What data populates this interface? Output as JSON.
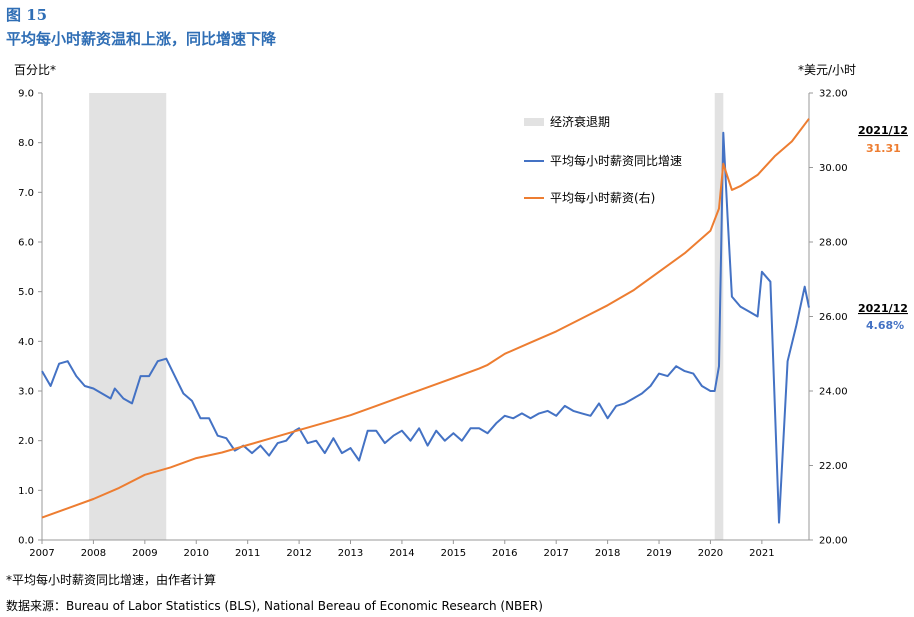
{
  "header": {
    "figure_number": "图 15",
    "title": "平均每小时薪资温和上涨，同比增速下降"
  },
  "axes": {
    "left_unit": "百分比*",
    "right_unit": "*美元/小时"
  },
  "footer": {
    "note": "*平均每小时薪资同比增速，由作者计算",
    "source": "数据来源：Bureau of Labor Statistics (BLS), National Bereau of Economic Research (NBER)"
  },
  "annotations": {
    "wage_date": "2021/12",
    "wage_value": "31.31",
    "growth_date": "2021/12",
    "growth_value": "4.68%"
  },
  "colors": {
    "growth": "#4472c4",
    "wage": "#ed7d31",
    "recession": "#e2e2e2"
  },
  "chart_data": {
    "type": "line",
    "x_start": "2007-01",
    "x_end": "2021-12",
    "xticks": [
      "2007",
      "2008",
      "2009",
      "2010",
      "2011",
      "2012",
      "2013",
      "2014",
      "2015",
      "2016",
      "2017",
      "2018",
      "2019",
      "2020",
      "2021"
    ],
    "ylim_left": [
      0,
      9
    ],
    "yticks_left": [
      "0.0",
      "1.0",
      "2.0",
      "3.0",
      "4.0",
      "5.0",
      "6.0",
      "7.0",
      "8.0",
      "9.0"
    ],
    "ylim_right": [
      20,
      32
    ],
    "yticks_right": [
      "20.00",
      "22.00",
      "24.00",
      "26.00",
      "28.00",
      "30.00",
      "32.00"
    ],
    "legend": [
      "经济衰退期",
      "平均每小时薪资同比增速",
      "平均每小时薪资(右)"
    ],
    "recessions": [
      {
        "start": "2007-12",
        "end": "2009-06"
      },
      {
        "start": "2020-02",
        "end": "2020-04"
      }
    ],
    "series": [
      {
        "name": "平均每小时薪资同比增速",
        "axis": "left",
        "points": [
          [
            "2007-01",
            3.4
          ],
          [
            "2007-03",
            3.1
          ],
          [
            "2007-05",
            3.55
          ],
          [
            "2007-07",
            3.6
          ],
          [
            "2007-09",
            3.3
          ],
          [
            "2007-11",
            3.1
          ],
          [
            "2008-01",
            3.05
          ],
          [
            "2008-03",
            2.95
          ],
          [
            "2008-05",
            2.85
          ],
          [
            "2008-06",
            3.05
          ],
          [
            "2008-08",
            2.85
          ],
          [
            "2008-10",
            2.75
          ],
          [
            "2008-12",
            3.3
          ],
          [
            "2009-02",
            3.3
          ],
          [
            "2009-04",
            3.6
          ],
          [
            "2009-06",
            3.65
          ],
          [
            "2009-08",
            3.3
          ],
          [
            "2009-10",
            2.95
          ],
          [
            "2009-12",
            2.8
          ],
          [
            "2010-02",
            2.45
          ],
          [
            "2010-04",
            2.45
          ],
          [
            "2010-06",
            2.1
          ],
          [
            "2010-08",
            2.05
          ],
          [
            "2010-10",
            1.8
          ],
          [
            "2010-12",
            1.9
          ],
          [
            "2011-02",
            1.75
          ],
          [
            "2011-04",
            1.9
          ],
          [
            "2011-06",
            1.7
          ],
          [
            "2011-08",
            1.95
          ],
          [
            "2011-10",
            2.0
          ],
          [
            "2011-12",
            2.2
          ],
          [
            "2012-01",
            2.25
          ],
          [
            "2012-03",
            1.95
          ],
          [
            "2012-05",
            2.0
          ],
          [
            "2012-07",
            1.75
          ],
          [
            "2012-09",
            2.05
          ],
          [
            "2012-11",
            1.75
          ],
          [
            "2013-01",
            1.85
          ],
          [
            "2013-03",
            1.6
          ],
          [
            "2013-05",
            2.2
          ],
          [
            "2013-07",
            2.2
          ],
          [
            "2013-09",
            1.95
          ],
          [
            "2013-11",
            2.1
          ],
          [
            "2014-01",
            2.2
          ],
          [
            "2014-03",
            2.0
          ],
          [
            "2014-05",
            2.25
          ],
          [
            "2014-07",
            1.9
          ],
          [
            "2014-09",
            2.2
          ],
          [
            "2014-11",
            2.0
          ],
          [
            "2015-01",
            2.15
          ],
          [
            "2015-03",
            2.0
          ],
          [
            "2015-05",
            2.25
          ],
          [
            "2015-07",
            2.25
          ],
          [
            "2015-09",
            2.15
          ],
          [
            "2015-11",
            2.35
          ],
          [
            "2016-01",
            2.5
          ],
          [
            "2016-03",
            2.45
          ],
          [
            "2016-05",
            2.55
          ],
          [
            "2016-07",
            2.45
          ],
          [
            "2016-09",
            2.55
          ],
          [
            "2016-11",
            2.6
          ],
          [
            "2017-01",
            2.5
          ],
          [
            "2017-03",
            2.7
          ],
          [
            "2017-05",
            2.6
          ],
          [
            "2017-07",
            2.55
          ],
          [
            "2017-09",
            2.5
          ],
          [
            "2017-11",
            2.75
          ],
          [
            "2018-01",
            2.45
          ],
          [
            "2018-03",
            2.7
          ],
          [
            "2018-05",
            2.75
          ],
          [
            "2018-07",
            2.85
          ],
          [
            "2018-09",
            2.95
          ],
          [
            "2018-11",
            3.1
          ],
          [
            "2019-01",
            3.35
          ],
          [
            "2019-03",
            3.3
          ],
          [
            "2019-05",
            3.5
          ],
          [
            "2019-07",
            3.4
          ],
          [
            "2019-09",
            3.35
          ],
          [
            "2019-11",
            3.1
          ],
          [
            "2020-01",
            3.0
          ],
          [
            "2020-02",
            3.0
          ],
          [
            "2020-03",
            3.5
          ],
          [
            "2020-04",
            8.2
          ],
          [
            "2020-05",
            6.5
          ],
          [
            "2020-06",
            4.9
          ],
          [
            "2020-08",
            4.7
          ],
          [
            "2020-10",
            4.6
          ],
          [
            "2020-12",
            4.5
          ],
          [
            "2021-01",
            5.4
          ],
          [
            "2021-03",
            5.2
          ],
          [
            "2021-05",
            0.35
          ],
          [
            "2021-07",
            3.6
          ],
          [
            "2021-09",
            4.3
          ],
          [
            "2021-11",
            5.1
          ],
          [
            "2021-12",
            4.68
          ]
        ]
      },
      {
        "name": "平均每小时薪资(右)",
        "axis": "right",
        "points": [
          [
            "2007-01",
            20.6
          ],
          [
            "2007-07",
            20.85
          ],
          [
            "2008-01",
            21.1
          ],
          [
            "2008-07",
            21.4
          ],
          [
            "2009-01",
            21.75
          ],
          [
            "2009-07",
            21.95
          ],
          [
            "2010-01",
            22.2
          ],
          [
            "2010-07",
            22.35
          ],
          [
            "2011-01",
            22.55
          ],
          [
            "2011-07",
            22.75
          ],
          [
            "2012-01",
            22.95
          ],
          [
            "2012-07",
            23.15
          ],
          [
            "2013-01",
            23.35
          ],
          [
            "2013-07",
            23.6
          ],
          [
            "2014-01",
            23.85
          ],
          [
            "2014-07",
            24.1
          ],
          [
            "2015-01",
            24.35
          ],
          [
            "2015-07",
            24.6
          ],
          [
            "2015-09",
            24.7
          ],
          [
            "2016-01",
            25.0
          ],
          [
            "2016-07",
            25.3
          ],
          [
            "2017-01",
            25.6
          ],
          [
            "2017-07",
            25.95
          ],
          [
            "2018-01",
            26.3
          ],
          [
            "2018-07",
            26.7
          ],
          [
            "2019-01",
            27.2
          ],
          [
            "2019-07",
            27.7
          ],
          [
            "2020-01",
            28.3
          ],
          [
            "2020-03",
            28.9
          ],
          [
            "2020-04",
            30.1
          ],
          [
            "2020-06",
            29.4
          ],
          [
            "2020-08",
            29.5
          ],
          [
            "2020-12",
            29.8
          ],
          [
            "2021-04",
            30.3
          ],
          [
            "2021-08",
            30.7
          ],
          [
            "2021-12",
            31.31
          ]
        ]
      }
    ]
  }
}
